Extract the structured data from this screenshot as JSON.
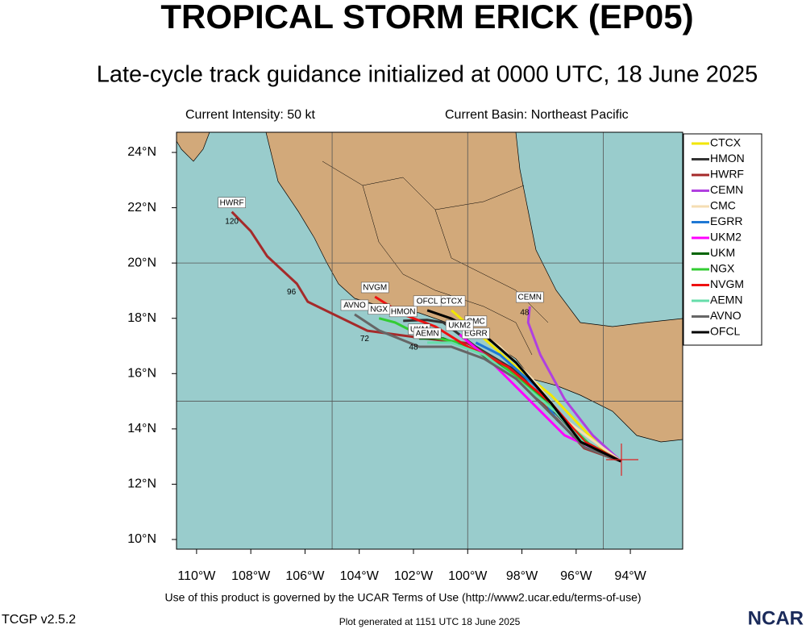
{
  "chart_data": {
    "type": "line",
    "title": "TROPICAL STORM ERICK (EP05)",
    "subtitle": "Late-cycle track guidance initialized at 0000 UTC, 18 June 2025",
    "left_header": "Current Intensity: 50 kt",
    "right_header": "Current Basin: Northeast Pacific",
    "xlim": [
      -110.74,
      -92.07
    ],
    "ylim": [
      9.65,
      24.73
    ],
    "xticks": [
      {
        "value": -110,
        "label": "110°W"
      },
      {
        "value": -108,
        "label": "108°W"
      },
      {
        "value": -106,
        "label": "106°W"
      },
      {
        "value": -104,
        "label": "104°W"
      },
      {
        "value": -102,
        "label": "102°W"
      },
      {
        "value": -100,
        "label": "100°W"
      },
      {
        "value": -98,
        "label": "98°W"
      },
      {
        "value": -96,
        "label": "96°W"
      },
      {
        "value": -94,
        "label": "94°W"
      }
    ],
    "yticks": [
      {
        "value": 10,
        "label": "10°N"
      },
      {
        "value": 12,
        "label": "12°N"
      },
      {
        "value": 14,
        "label": "14°N"
      },
      {
        "value": 16,
        "label": "16°N"
      },
      {
        "value": 18,
        "label": "18°N"
      },
      {
        "value": 20,
        "label": "20°N"
      },
      {
        "value": 22,
        "label": "22°N"
      },
      {
        "value": 24,
        "label": "24°N"
      }
    ],
    "grid_x": [
      -105,
      -100,
      -95
    ],
    "grid_y": [
      15,
      20
    ],
    "series": [
      {
        "name": "CTCX",
        "color": "#f2e600",
        "x": [
          -94.35,
          -95.09,
          -96.92,
          -98.21,
          -99.4,
          -100.6
        ],
        "y": [
          12.83,
          13.33,
          15.22,
          16.24,
          17.27,
          18.29
        ]
      },
      {
        "name": "HMON",
        "color": "#333333",
        "x": [
          -94.35,
          -95.68,
          -98.21,
          -99.7,
          -100.9,
          -101.5,
          -102.38
        ],
        "y": [
          12.83,
          13.45,
          16.1,
          16.97,
          17.85,
          17.94,
          17.91
        ]
      },
      {
        "name": "HWRF",
        "color": "#a52a2a",
        "x": [
          -94.35,
          -95.7,
          -96.7,
          -97.8,
          -98.8,
          -100.0,
          -101.8,
          -103.7,
          -105.9,
          -106.3,
          -107.4,
          -108.0,
          -108.7
        ],
        "y": [
          12.83,
          13.3,
          14.35,
          15.5,
          16.4,
          17.1,
          17.3,
          17.55,
          18.6,
          19.25,
          20.25,
          21.15,
          21.85
        ]
      },
      {
        "name": "CEMN",
        "color": "#b040e0",
        "x": [
          -94.35,
          -95.39,
          -96.43,
          -97.32,
          -97.77,
          -97.71
        ],
        "y": [
          12.83,
          13.77,
          15.08,
          16.68,
          17.85,
          18.43
        ]
      },
      {
        "name": "CMC",
        "color": "#f5deb3",
        "x": [
          -94.35,
          -96.43,
          -97.62,
          -98.81,
          -99.7
        ],
        "y": [
          12.83,
          14.35,
          15.81,
          16.97,
          17.56
        ]
      },
      {
        "name": "EGRR",
        "color": "#1f78d4",
        "x": [
          -94.35,
          -95.98,
          -96.73,
          -97.47,
          -98.81,
          -99.7
        ],
        "y": [
          12.83,
          13.62,
          14.35,
          15.52,
          16.68,
          17.12
        ]
      },
      {
        "name": "UKM2",
        "color": "#ff00ff",
        "x": [
          -94.35,
          -96.43,
          -98.21,
          -99.4,
          -100.3
        ],
        "y": [
          12.83,
          13.77,
          15.52,
          16.68,
          17.41
        ]
      },
      {
        "name": "UKM",
        "color": "#006400",
        "x": [
          -94.35,
          -95.83,
          -96.92,
          -98.51,
          -99.7,
          -100.9,
          -101.79
        ],
        "y": [
          12.83,
          13.62,
          14.93,
          16.1,
          16.83,
          17.27,
          17.27
        ]
      },
      {
        "name": "NGX",
        "color": "#33cc33",
        "x": [
          -94.35,
          -95.39,
          -96.92,
          -98.81,
          -100.3,
          -101.79,
          -102.68,
          -103.27
        ],
        "y": [
          12.83,
          13.33,
          14.79,
          16.39,
          17.12,
          17.41,
          17.85,
          18.0
        ]
      },
      {
        "name": "NVGM",
        "color": "#ee1111",
        "x": [
          -94.35,
          -95.68,
          -96.92,
          -98.51,
          -100.0,
          -101.19,
          -102.38,
          -103.42
        ],
        "y": [
          12.83,
          13.53,
          14.93,
          16.24,
          16.97,
          17.7,
          18.14,
          18.78
        ]
      },
      {
        "name": "AEMN",
        "color": "#66ddaa",
        "x": [
          -94.35,
          -95.68,
          -96.78,
          -98.21,
          -99.4,
          -100.6,
          -101.49
        ],
        "y": [
          12.83,
          13.45,
          14.64,
          15.81,
          16.68,
          17.12,
          17.12
        ]
      },
      {
        "name": "AVNO",
        "color": "#666666",
        "x": [
          -94.35,
          -95.68,
          -97.02,
          -98.21,
          -99.4,
          -100.6,
          -101.79,
          -103.27,
          -104.17
        ],
        "y": [
          12.83,
          13.33,
          14.64,
          15.81,
          16.54,
          16.97,
          16.97,
          17.56,
          18.14
        ]
      },
      {
        "name": "OFCL",
        "color": "#000000",
        "x": [
          -94.35,
          -95.83,
          -96.92,
          -98.21,
          -99.4,
          -100.6,
          -101.49
        ],
        "y": [
          12.83,
          13.53,
          14.93,
          16.39,
          17.41,
          17.99,
          18.29
        ]
      }
    ],
    "hour_labels": [
      {
        "text": "120",
        "x": -108.7,
        "y": 21.5
      },
      {
        "text": "96",
        "x": -106.5,
        "y": 18.95
      },
      {
        "text": "72",
        "x": -103.8,
        "y": 17.25
      },
      {
        "text": "48",
        "x": -102.0,
        "y": 16.95
      },
      {
        "text": "48",
        "x": -97.9,
        "y": 18.2
      }
    ]
  },
  "footer": {
    "terms": "Use of this product is governed by the UCAR Terms of Use (http://www2.ucar.edu/terms-of-use)",
    "version": "TCGP v2.5.2",
    "generated": "Plot generated at 1151 UTC   18 June 2025",
    "logo": "NCAR"
  }
}
